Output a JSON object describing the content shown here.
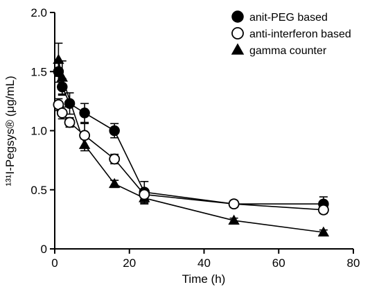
{
  "chart_data": {
    "type": "line",
    "title": "",
    "xlabel": "Time (h)",
    "ylabel": "¹³¹I-Pegsys® (μg/mL)",
    "xlim": [
      0,
      80
    ],
    "ylim": [
      0,
      2.0
    ],
    "xticks": [
      0,
      20,
      40,
      60,
      80
    ],
    "yticks": [
      0,
      0.5,
      1.0,
      1.5,
      2.0
    ],
    "xtick_labels": [
      "0",
      "20",
      "40",
      "60",
      "80"
    ],
    "ytick_labels": [
      "0",
      "0.5",
      "1.0",
      "1.5",
      "2.0"
    ],
    "grid": false,
    "legend_position": "top-right",
    "series": [
      {
        "name": "anit-PEG based",
        "marker": "filled-circle",
        "color": "#000000",
        "x": [
          1,
          2,
          4,
          8,
          16,
          24,
          48,
          72
        ],
        "y": [
          1.5,
          1.37,
          1.23,
          1.15,
          1.0,
          0.48,
          0.38,
          0.38
        ],
        "err": [
          0.09,
          0.07,
          0.09,
          0.08,
          0.06,
          0.09,
          0.03,
          0.06
        ]
      },
      {
        "name": "anti-interferon based",
        "marker": "open-circle",
        "color": "#000000",
        "x": [
          1,
          2,
          4,
          8,
          16,
          24,
          48,
          72
        ],
        "y": [
          1.22,
          1.15,
          1.07,
          0.96,
          0.76,
          0.46,
          0.38,
          0.33
        ],
        "err": [
          0.05,
          0.05,
          0.04,
          0.1,
          0.04,
          0.04,
          0.02,
          0.03
        ]
      },
      {
        "name": "gamma counter",
        "marker": "filled-triangle",
        "color": "#000000",
        "x": [
          1,
          2,
          8,
          16,
          24,
          48,
          72
        ],
        "y": [
          1.6,
          1.45,
          0.88,
          0.55,
          0.43,
          0.24,
          0.14
        ],
        "err": [
          0.14,
          0.14,
          0.05,
          0.03,
          0.05,
          0.02,
          0.02
        ]
      }
    ]
  }
}
